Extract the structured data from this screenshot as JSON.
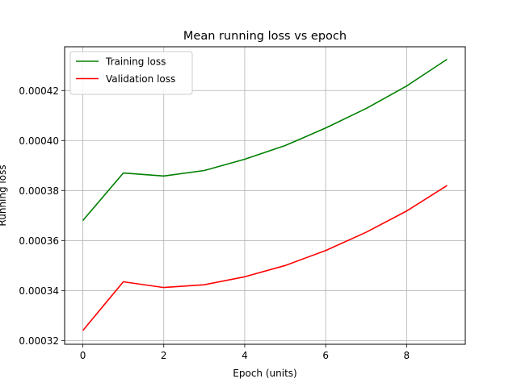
{
  "chart_data": {
    "type": "line",
    "title": "Mean running loss vs epoch",
    "xlabel": "Epoch (units)",
    "ylabel": "Running loss",
    "x": [
      0,
      1,
      2,
      3,
      4,
      5,
      6,
      7,
      8,
      9
    ],
    "series": [
      {
        "name": "Training loss",
        "color": "#008000",
        "values": [
          0.000368,
          0.000387,
          0.0003858,
          0.000388,
          0.0003925,
          0.000398,
          0.000405,
          0.0004128,
          0.0004218,
          0.0004325
        ]
      },
      {
        "name": "Validation loss",
        "color": "#ff0000",
        "values": [
          0.000324,
          0.0003435,
          0.0003412,
          0.0003423,
          0.0003455,
          0.00035,
          0.000356,
          0.0003633,
          0.0003718,
          0.000382
        ]
      }
    ],
    "xlim": [
      -0.45,
      9.45
    ],
    "ylim": [
      0.0003185,
      0.0004375
    ],
    "xticks": [
      0,
      2,
      4,
      6,
      8
    ],
    "xtick_labels": [
      "0",
      "2",
      "4",
      "6",
      "8"
    ],
    "yticks": [
      0.00032,
      0.00034,
      0.00036,
      0.00038,
      0.0004,
      0.00042
    ],
    "ytick_labels": [
      "0.00032",
      "0.00034",
      "0.00036",
      "0.00038",
      "0.00040",
      "0.00042"
    ],
    "grid": true,
    "legend_position": "upper-left"
  }
}
